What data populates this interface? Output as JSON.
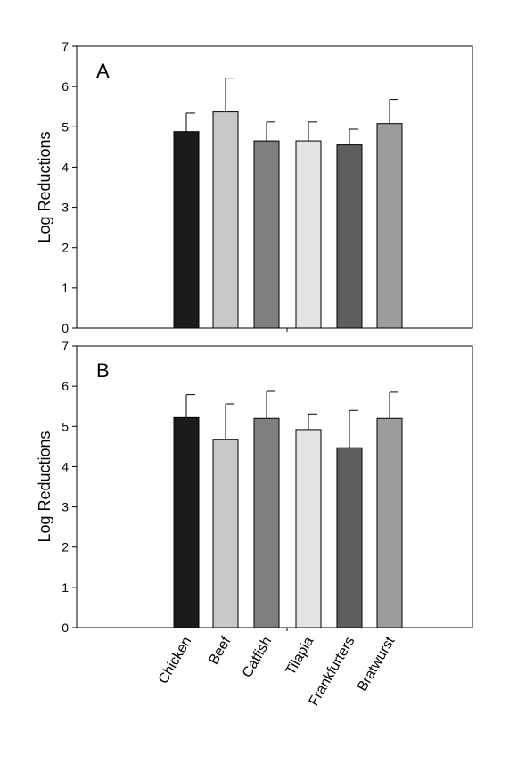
{
  "chart_data": [
    {
      "type": "bar",
      "panel_label": "A",
      "categories": [
        "Chicken",
        "Beef",
        "Catfish",
        "Tilapia",
        "Frankfurters",
        "Bratwurst"
      ],
      "values": [
        4.88,
        5.37,
        4.65,
        4.65,
        4.55,
        5.08
      ],
      "error_plus": [
        0.46,
        0.84,
        0.47,
        0.47,
        0.39,
        0.6
      ],
      "colors": [
        "#1b1b1b",
        "#c8c8c8",
        "#7f7f7f",
        "#e4e4e6",
        "#5e5e5e",
        "#9b9d9d"
      ],
      "ylabel": "Log Reductions",
      "ylim": [
        0,
        7
      ],
      "yticks": [
        "0",
        "1",
        "2",
        "3",
        "4",
        "5",
        "6",
        "7"
      ],
      "grid": false
    },
    {
      "type": "bar",
      "panel_label": "B",
      "categories": [
        "Chicken",
        "Beef",
        "Catfish",
        "Tilapia",
        "Frankfurters",
        "Bratwurst"
      ],
      "values": [
        5.22,
        4.68,
        5.2,
        4.92,
        4.47,
        5.2
      ],
      "error_plus": [
        0.57,
        0.88,
        0.67,
        0.39,
        0.93,
        0.65
      ],
      "colors": [
        "#1b1b1b",
        "#c8c8c8",
        "#7f7f7f",
        "#e4e4e6",
        "#5e5e5e",
        "#9b9d9d"
      ],
      "ylabel": "Log Reductions",
      "ylim": [
        0,
        7
      ],
      "yticks": [
        "0",
        "1",
        "2",
        "3",
        "4",
        "5",
        "6",
        "7"
      ],
      "grid": false
    }
  ]
}
